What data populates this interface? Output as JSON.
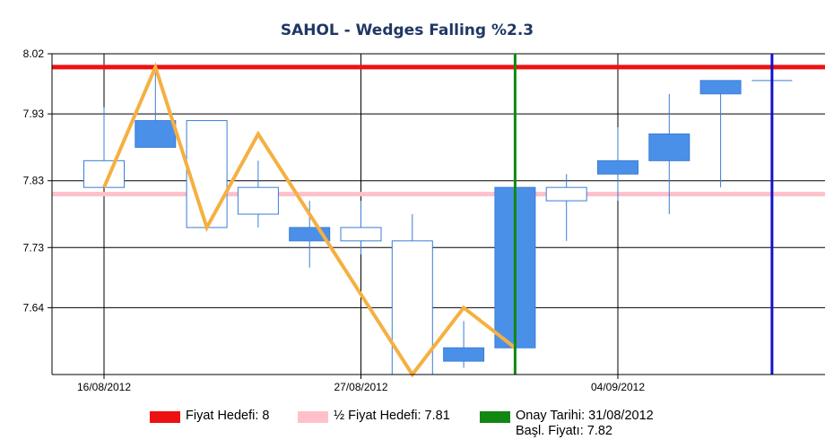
{
  "chart_data": {
    "type": "candlestick",
    "title": "SAHOL - Wedges Falling %2.3",
    "y_ticks": [
      "8.02",
      "7.93",
      "7.83",
      "7.73",
      "7.64"
    ],
    "y_tick_values": [
      8.02,
      7.93,
      7.83,
      7.73,
      7.64
    ],
    "ylim": [
      7.54,
      8.02
    ],
    "grid": true,
    "x_tick_labels": [
      {
        "index": 0,
        "label": "16/08/2012"
      },
      {
        "index": 5,
        "label": "27/08/2012"
      },
      {
        "index": 10,
        "label": "04/09/2012"
      }
    ],
    "x_count": 14,
    "candles": [
      {
        "open": 7.82,
        "close": 7.86,
        "high": 7.94,
        "low": 7.82
      },
      {
        "open": 7.92,
        "close": 7.88,
        "high": 8.0,
        "low": 7.88
      },
      {
        "open": 7.76,
        "close": 7.92,
        "high": 7.92,
        "low": 7.76
      },
      {
        "open": 7.78,
        "close": 7.82,
        "high": 7.86,
        "low": 7.76
      },
      {
        "open": 7.76,
        "close": 7.74,
        "high": 7.8,
        "low": 7.7
      },
      {
        "open": 7.74,
        "close": 7.76,
        "high": 7.8,
        "low": 7.72
      },
      {
        "open": 7.54,
        "close": 7.74,
        "high": 7.78,
        "low": 7.54
      },
      {
        "open": 7.58,
        "close": 7.56,
        "high": 7.62,
        "low": 7.55
      },
      {
        "open": 7.82,
        "close": 7.58,
        "high": 7.88,
        "low": 7.58
      },
      {
        "open": 7.8,
        "close": 7.82,
        "high": 7.84,
        "low": 7.74
      },
      {
        "open": 7.86,
        "close": 7.84,
        "high": 7.91,
        "low": 7.8
      },
      {
        "open": 7.9,
        "close": 7.86,
        "high": 7.96,
        "low": 7.78
      },
      {
        "open": 7.98,
        "close": 7.96,
        "high": 7.98,
        "low": 7.82
      },
      {
        "open": 7.98,
        "close": 7.98,
        "high": 7.98,
        "low": 7.93
      }
    ],
    "bullish_color": "#ffffff",
    "bearish_color": "#4a90e8",
    "candle_outline": "#3a7dd6",
    "wedge_line": {
      "color": "#f5b041",
      "points": [
        {
          "x": 0,
          "y": 7.82
        },
        {
          "x": 1,
          "y": 8.0
        },
        {
          "x": 2,
          "y": 7.76
        },
        {
          "x": 3,
          "y": 7.9
        },
        {
          "x": 6,
          "y": 7.54
        },
        {
          "x": 7,
          "y": 7.64
        },
        {
          "x": 8,
          "y": 7.58
        }
      ]
    },
    "target_line": {
      "value": 8.0,
      "color": "#ee1111"
    },
    "half_target_line": {
      "value": 7.81,
      "color": "#ffc0cb"
    },
    "confirm_line": {
      "x": 8,
      "color": "#118811"
    },
    "current_line": {
      "x": 13,
      "color": "#1111cc"
    }
  },
  "legend": {
    "target": {
      "label": "Fiyat Hedefi: 8",
      "color": "#ee1111"
    },
    "half_target": {
      "label": "½ Fiyat Hedefi: 7.81",
      "color": "#ffc0cb"
    },
    "confirm": {
      "label_line1": "Onay Tarihi: 31/08/2012",
      "label_line2": "Başl. Fiyatı:  7.82",
      "color": "#118811"
    }
  }
}
